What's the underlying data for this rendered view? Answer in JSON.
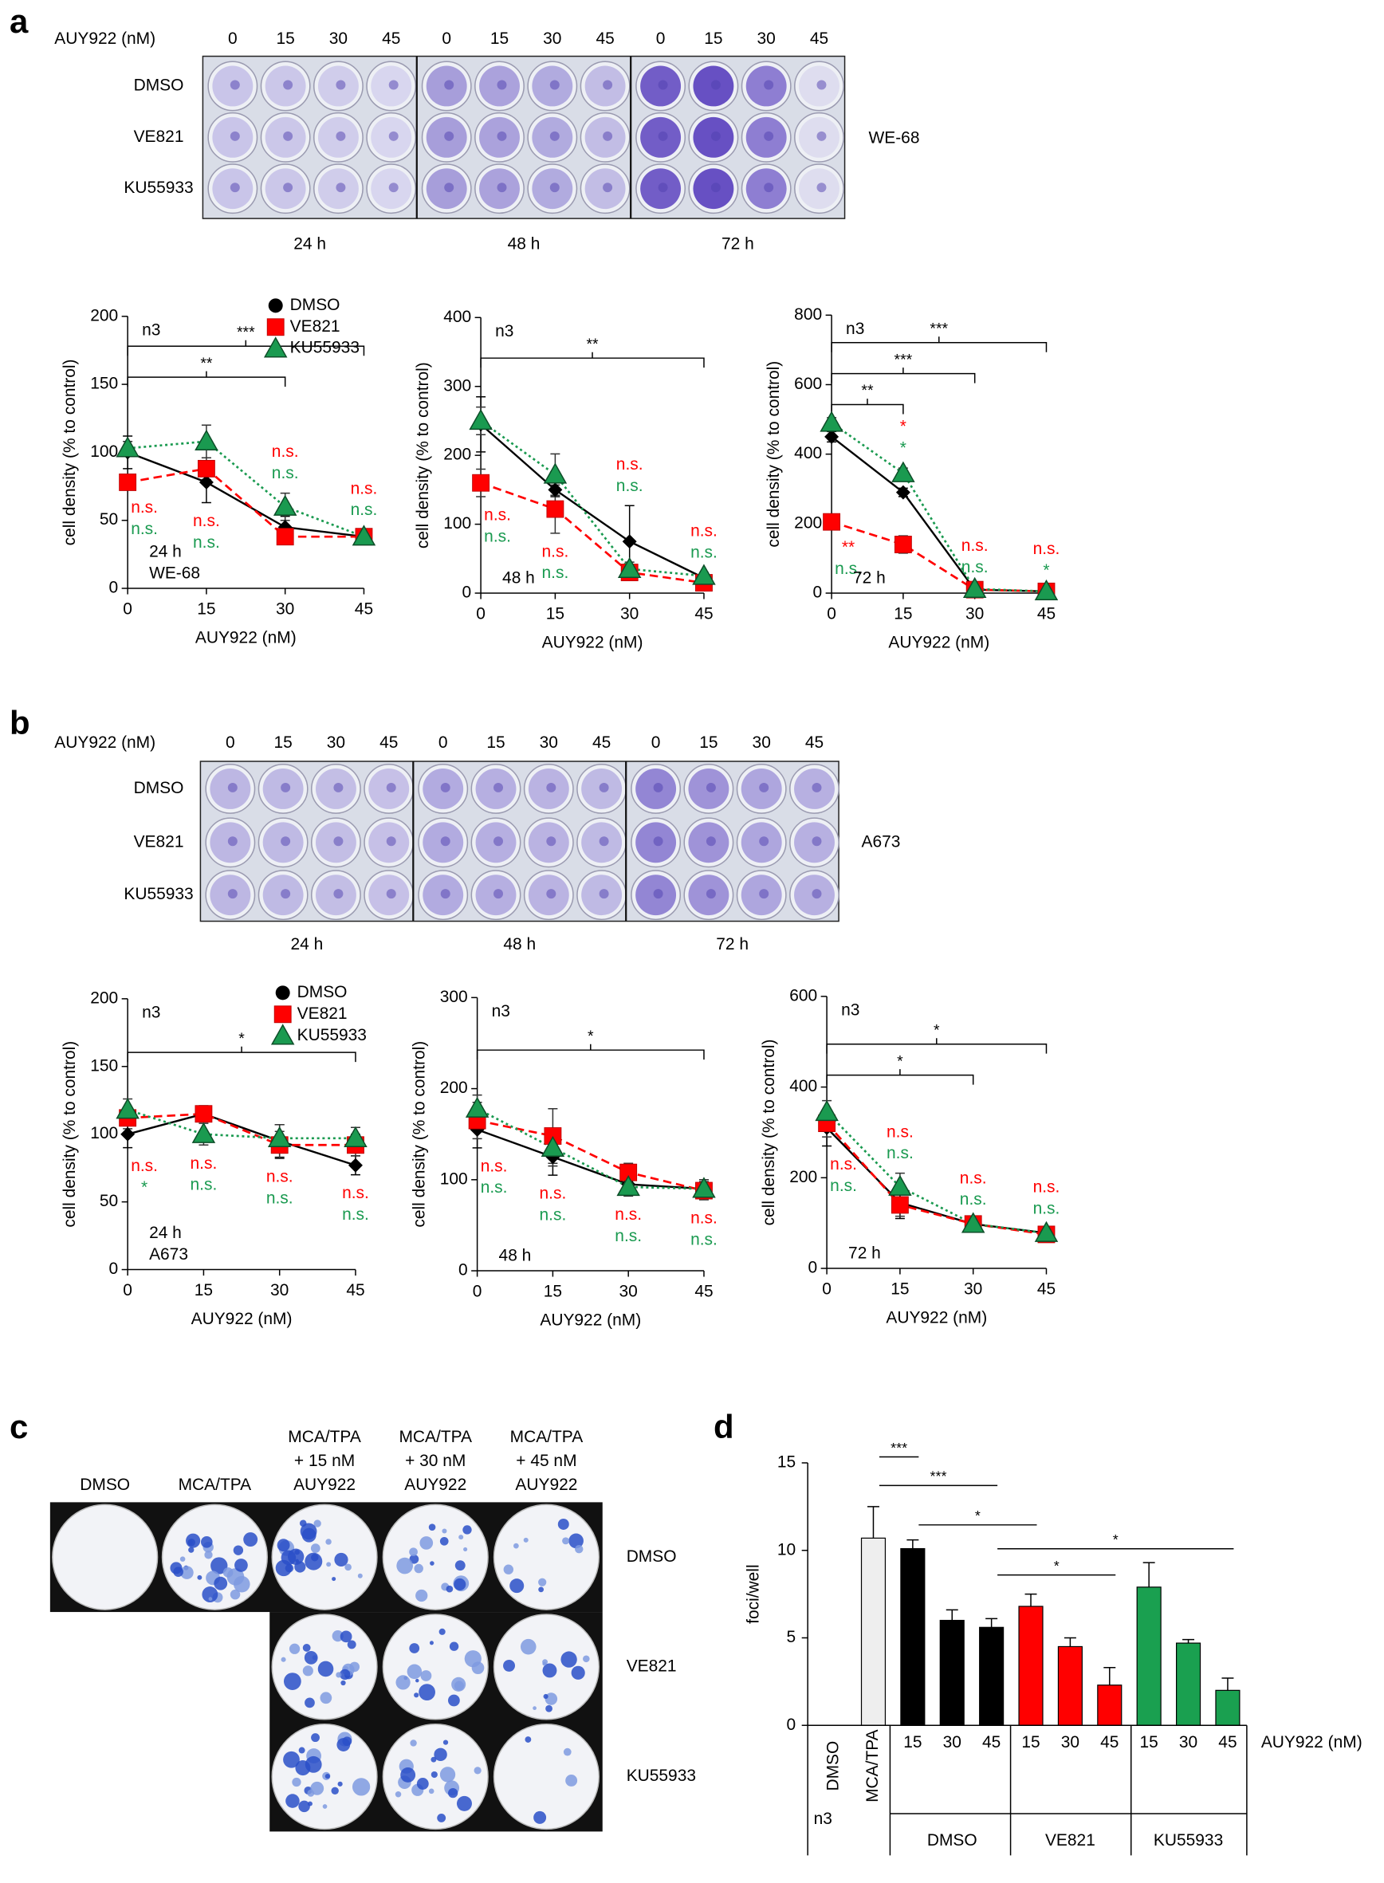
{
  "panel_labels": [
    "a",
    "b",
    "c",
    "d"
  ],
  "panel_a": {
    "drug_label": "AUY922 (nM)",
    "doses": [
      "0",
      "15",
      "30",
      "45"
    ],
    "rows": [
      "DMSO",
      "VE821",
      "KU55933"
    ],
    "times": [
      "24 h",
      "48 h",
      "72 h"
    ],
    "cell_line": "WE-68"
  },
  "panel_b": {
    "drug_label": "AUY922 (nM)",
    "doses": [
      "0",
      "15",
      "30",
      "45"
    ],
    "rows": [
      "DMSO",
      "VE821",
      "KU55933"
    ],
    "times": [
      "24 h",
      "48 h",
      "72 h"
    ],
    "cell_line": "A673"
  },
  "panel_c": {
    "columns": [
      [
        "DMSO"
      ],
      [
        "MCA/TPA"
      ],
      [
        "MCA/TPA",
        "+ 15 nM",
        "AUY922"
      ],
      [
        "MCA/TPA",
        "+ 30 nM",
        "AUY922"
      ],
      [
        "MCA/TPA",
        "+ 45 nM",
        "AUY922"
      ]
    ],
    "rows": [
      "DMSO",
      "VE821",
      "KU55933"
    ]
  },
  "chart_data": [
    {
      "type": "line",
      "xlabel": "AUY922 (nM)",
      "ylabel": "cell density (% to control)",
      "xlim": [
        0,
        45
      ],
      "xticks": [
        0,
        15,
        30,
        45
      ],
      "ylim": [
        0,
        200
      ],
      "yticks": [
        0,
        50,
        100,
        150,
        200
      ],
      "x": [
        0,
        15,
        30,
        45
      ],
      "notes": [
        "n3",
        "24 h",
        "WE-68"
      ],
      "legend": true,
      "series": [
        {
          "name": "DMSO",
          "color": "#000000",
          "marker": "diamond",
          "line_style": "solid",
          "values": [
            100,
            78,
            45,
            38
          ],
          "errors": [
            12,
            15,
            8,
            5
          ]
        },
        {
          "name": "VE821",
          "color": "#ff0000",
          "marker": "square",
          "line_style": "dashed",
          "values": [
            78,
            88,
            38,
            38
          ],
          "errors": [
            5,
            8,
            5,
            4
          ],
          "sig_labels": [
            "n.s.",
            "n.s.",
            "n.s.",
            "n.s."
          ]
        },
        {
          "name": "KU55933",
          "color": "#1a9a50",
          "marker": "triangle",
          "line_style": "dotted",
          "values": [
            103,
            108,
            60,
            38
          ],
          "errors": [
            5,
            12,
            10,
            4
          ],
          "sig_labels": [
            "n.s.",
            "n.s.",
            "n.s.",
            "n.s."
          ]
        }
      ],
      "brackets": [
        {
          "from": 0,
          "to": 45,
          "label": "***"
        },
        {
          "from": 0,
          "to": 30,
          "label": "**"
        }
      ]
    },
    {
      "type": "line",
      "xlabel": "AUY922 (nM)",
      "ylabel": "cell density (% to control)",
      "xlim": [
        0,
        45
      ],
      "xticks": [
        0,
        15,
        30,
        45
      ],
      "ylim": [
        0,
        400
      ],
      "yticks": [
        0,
        100,
        200,
        300,
        400
      ],
      "x": [
        0,
        15,
        30,
        45
      ],
      "notes": [
        "n3",
        "48 h"
      ],
      "legend": false,
      "series": [
        {
          "name": "DMSO",
          "color": "#000000",
          "marker": "diamond",
          "line_style": "solid",
          "values": [
            245,
            150,
            75,
            22
          ],
          "errors": [
            40,
            10,
            52,
            5
          ]
        },
        {
          "name": "VE821",
          "color": "#ff0000",
          "marker": "square",
          "line_style": "dashed",
          "values": [
            160,
            122,
            30,
            15
          ],
          "errors": [
            20,
            35,
            10,
            5
          ],
          "sig_labels": [
            "n.s.",
            "n.s.",
            "n.s.",
            "n.s."
          ]
        },
        {
          "name": "KU55933",
          "color": "#1a9a50",
          "marker": "triangle",
          "line_style": "dotted",
          "values": [
            250,
            172,
            35,
            25
          ],
          "errors": [
            20,
            30,
            10,
            5
          ],
          "sig_labels": [
            "n.s.",
            "n.s.",
            "n.s.",
            "n.s."
          ]
        }
      ],
      "brackets": [
        {
          "from": 0,
          "to": 45,
          "label": "**"
        }
      ]
    },
    {
      "type": "line",
      "xlabel": "AUY922 (nM)",
      "ylabel": "cell density (% to control)",
      "xlim": [
        0,
        45
      ],
      "xticks": [
        0,
        15,
        30,
        45
      ],
      "ylim": [
        0,
        800
      ],
      "yticks": [
        0,
        200,
        400,
        600,
        800
      ],
      "x": [
        0,
        15,
        30,
        45
      ],
      "notes": [
        "n3",
        "72 h"
      ],
      "legend": false,
      "series": [
        {
          "name": "DMSO",
          "color": "#000000",
          "marker": "diamond",
          "line_style": "solid",
          "values": [
            450,
            290,
            10,
            5
          ],
          "errors": [
            15,
            12,
            5,
            3
          ]
        },
        {
          "name": "VE821",
          "color": "#ff0000",
          "marker": "square",
          "line_style": "dashed",
          "values": [
            205,
            140,
            10,
            5
          ],
          "errors": [
            20,
            25,
            5,
            3
          ],
          "sig_labels": [
            "**",
            "*",
            "n.s.",
            "n.s."
          ]
        },
        {
          "name": "KU55933",
          "color": "#1a9a50",
          "marker": "triangle",
          "line_style": "dotted",
          "values": [
            490,
            345,
            12,
            5
          ],
          "errors": [
            15,
            15,
            5,
            3
          ],
          "sig_labels": [
            "n.s.",
            "*",
            "n.s.",
            "*"
          ]
        }
      ],
      "brackets": [
        {
          "from": 0,
          "to": 45,
          "label": "***"
        },
        {
          "from": 0,
          "to": 30,
          "label": "***"
        },
        {
          "from": 0,
          "to": 15,
          "label": "**"
        }
      ]
    },
    {
      "type": "line",
      "xlabel": "AUY922 (nM)",
      "ylabel": "cell density (% to control)",
      "xlim": [
        0,
        45
      ],
      "xticks": [
        0,
        15,
        30,
        45
      ],
      "ylim": [
        0,
        200
      ],
      "yticks": [
        0,
        50,
        100,
        150,
        200
      ],
      "x": [
        0,
        15,
        30,
        45
      ],
      "notes": [
        "n3",
        "24 h",
        "A673"
      ],
      "legend": true,
      "series": [
        {
          "name": "DMSO",
          "color": "#000000",
          "marker": "diamond",
          "line_style": "solid",
          "values": [
            100,
            115,
            95,
            77
          ],
          "errors": [
            10,
            5,
            12,
            7
          ]
        },
        {
          "name": "VE821",
          "color": "#ff0000",
          "marker": "square",
          "line_style": "dashed",
          "values": [
            112,
            115,
            92,
            92
          ],
          "errors": [
            8,
            6,
            10,
            8
          ],
          "sig_labels": [
            "n.s.",
            "n.s.",
            "n.s.",
            "n.s."
          ]
        },
        {
          "name": "KU55933",
          "color": "#1a9a50",
          "marker": "triangle",
          "line_style": "dotted",
          "values": [
            118,
            100,
            97,
            97
          ],
          "errors": [
            8,
            8,
            10,
            8
          ],
          "sig_labels": [
            "*",
            "n.s.",
            "n.s.",
            "n.s."
          ]
        }
      ],
      "brackets": [
        {
          "from": 0,
          "to": 45,
          "label": "*"
        }
      ]
    },
    {
      "type": "line",
      "xlabel": "AUY922 (nM)",
      "ylabel": "cell density (% to control)",
      "xlim": [
        0,
        45
      ],
      "xticks": [
        0,
        15,
        30,
        45
      ],
      "ylim": [
        0,
        300
      ],
      "yticks": [
        0,
        100,
        200,
        300
      ],
      "x": [
        0,
        15,
        30,
        45
      ],
      "notes": [
        "n3",
        "48 h"
      ],
      "legend": false,
      "series": [
        {
          "name": "DMSO",
          "color": "#000000",
          "marker": "diamond",
          "line_style": "solid",
          "values": [
            155,
            125,
            95,
            90
          ],
          "errors": [
            20,
            20,
            10,
            10
          ]
        },
        {
          "name": "VE821",
          "color": "#ff0000",
          "marker": "square",
          "line_style": "dashed",
          "values": [
            165,
            148,
            108,
            88
          ],
          "errors": [
            20,
            30,
            10,
            10
          ],
          "sig_labels": [
            "n.s.",
            "n.s.",
            "n.s.",
            "n.s."
          ]
        },
        {
          "name": "KU55933",
          "color": "#1a9a50",
          "marker": "triangle",
          "line_style": "dotted",
          "values": [
            178,
            135,
            92,
            90
          ],
          "errors": [
            15,
            20,
            10,
            10
          ],
          "sig_labels": [
            "n.s.",
            "n.s.",
            "n.s.",
            "n.s."
          ]
        }
      ],
      "brackets": [
        {
          "from": 0,
          "to": 45,
          "label": "*"
        }
      ]
    },
    {
      "type": "line",
      "xlabel": "AUY922 (nM)",
      "ylabel": "cell density (% to control)",
      "xlim": [
        0,
        45
      ],
      "xticks": [
        0,
        15,
        30,
        45
      ],
      "ylim": [
        0,
        600
      ],
      "yticks": [
        0,
        200,
        400,
        600
      ],
      "x": [
        0,
        15,
        30,
        45
      ],
      "notes": [
        "n3",
        "72 h"
      ],
      "legend": false,
      "series": [
        {
          "name": "DMSO",
          "color": "#000000",
          "marker": "diamond",
          "line_style": "solid",
          "values": [
            310,
            145,
            98,
            78
          ],
          "errors": [
            40,
            35,
            10,
            10
          ]
        },
        {
          "name": "VE821",
          "color": "#ff0000",
          "marker": "square",
          "line_style": "dashed",
          "values": [
            320,
            140,
            98,
            75
          ],
          "errors": [
            30,
            25,
            10,
            10
          ],
          "sig_labels": [
            "n.s.",
            "n.s.",
            "n.s.",
            "n.s."
          ]
        },
        {
          "name": "KU55933",
          "color": "#1a9a50",
          "marker": "triangle",
          "line_style": "dotted",
          "values": [
            345,
            180,
            98,
            78
          ],
          "errors": [
            25,
            30,
            10,
            10
          ],
          "sig_labels": [
            "n.s.",
            "n.s.",
            "n.s.",
            "n.s."
          ]
        }
      ],
      "brackets": [
        {
          "from": 0,
          "to": 45,
          "label": "*"
        },
        {
          "from": 0,
          "to": 30,
          "label": "*"
        }
      ]
    },
    {
      "type": "bar",
      "ylabel": "foci/well",
      "xlabel": "AUY922 (nM)",
      "note": "n3",
      "ylim": [
        0,
        15
      ],
      "yticks": [
        0,
        5,
        10,
        15
      ],
      "categories": [
        "DMSO",
        "MCA/TPA",
        "15",
        "30",
        "45",
        "15",
        "30",
        "45",
        "15",
        "30",
        "45"
      ],
      "values": [
        0,
        10.7,
        10.1,
        6.0,
        5.6,
        6.8,
        4.5,
        2.3,
        7.9,
        4.7,
        2.0
      ],
      "errors": [
        0,
        1.8,
        0.5,
        0.6,
        0.5,
        0.7,
        0.5,
        1.0,
        1.4,
        0.2,
        0.7
      ],
      "colors": [
        "#eeeeee",
        "#eeeeee",
        "#000000",
        "#000000",
        "#000000",
        "#ff0000",
        "#ff0000",
        "#ff0000",
        "#1aa050",
        "#1aa050",
        "#1aa050"
      ],
      "groups": [
        {
          "name": "DMSO",
          "from": 2,
          "to": 4
        },
        {
          "name": "VE821",
          "from": 5,
          "to": 7
        },
        {
          "name": "KU55933",
          "from": 8,
          "to": 10
        }
      ],
      "brackets": [
        {
          "from": 1,
          "to": 2,
          "label": "***"
        },
        {
          "from": 1,
          "to": 4,
          "label": "***"
        },
        {
          "from": 2,
          "to": 5,
          "label": "*"
        },
        {
          "from": 4,
          "to": 10,
          "label": "*"
        },
        {
          "from": 4,
          "to": 7,
          "label": "*"
        }
      ]
    }
  ]
}
